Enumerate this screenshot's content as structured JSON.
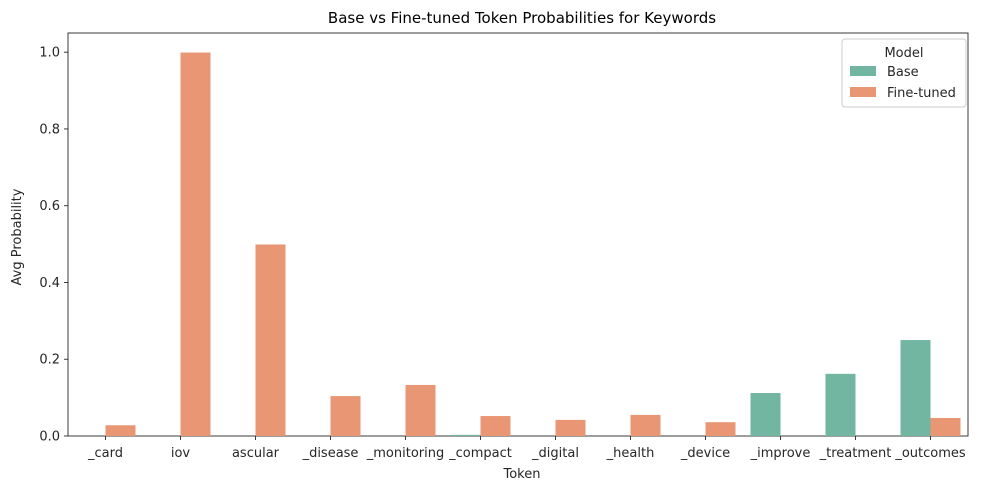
{
  "chart_data": {
    "type": "bar",
    "title": "Base vs Fine-tuned Token Probabilities for Keywords",
    "xlabel": "Token",
    "ylabel": "Avg Probability",
    "ylim": [
      0,
      1.05
    ],
    "yticks": [
      0.0,
      0.2,
      0.4,
      0.6,
      0.8,
      1.0
    ],
    "ytick_labels": [
      "0.0",
      "0.2",
      "0.4",
      "0.6",
      "0.8",
      "1.0"
    ],
    "categories": [
      "_card",
      "iov",
      "ascular",
      "_disease",
      "_monitoring",
      "_compact",
      "_digital",
      "_health",
      "_device",
      "_improve",
      "_treatment",
      "_outcomes"
    ],
    "series": [
      {
        "name": "Base",
        "color": "#72b6a1",
        "values": [
          0.0,
          0.0,
          0.0,
          0.0,
          0.0,
          0.003,
          0.0,
          0.0,
          0.0,
          0.112,
          0.162,
          0.25
        ]
      },
      {
        "name": "Fine-tuned",
        "color": "#e99675",
        "values": [
          0.028,
          0.999,
          0.499,
          0.104,
          0.133,
          0.052,
          0.042,
          0.055,
          0.036,
          0.0,
          0.0,
          0.047
        ]
      }
    ],
    "legend": {
      "title": "Model",
      "placement": "top-right"
    },
    "grid": false
  }
}
